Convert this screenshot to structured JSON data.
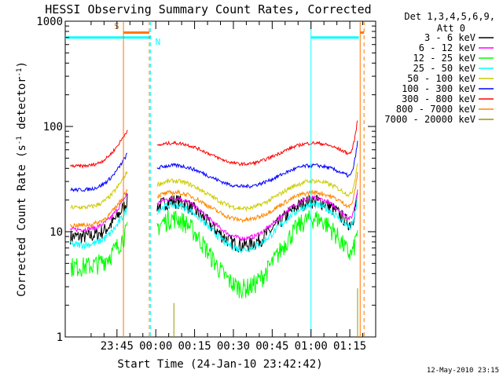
{
  "chart_data": {
    "type": "line",
    "title": "HESSI Observing Summary Count Rates, Corrected",
    "xlabel": "Start Time (24-Jan-10 23:42:42)",
    "ylabel_main": "Corrected Count Rate (s",
    "ylabel_sup1": "-1",
    "ylabel_mid": " detector",
    "ylabel_sup2": "-1",
    "ylabel_end": ")",
    "y_scale": "log",
    "ylim": [
      1,
      1000
    ],
    "xlim_minutes": [
      -20,
      100
    ],
    "x_ticks": [
      {
        "t": 0,
        "label": "23:45"
      },
      {
        "t": 15,
        "label": "00:00"
      },
      {
        "t": 30,
        "label": "00:15"
      },
      {
        "t": 45,
        "label": "00:30"
      },
      {
        "t": 60,
        "label": "00:45"
      },
      {
        "t": 75,
        "label": "01:00"
      },
      {
        "t": 90,
        "label": "01:15"
      }
    ],
    "y_ticks": [
      {
        "v": 1,
        "label": "1"
      },
      {
        "v": 10,
        "label": "10"
      },
      {
        "v": 100,
        "label": "100"
      },
      {
        "v": 1000,
        "label": "1000"
      }
    ],
    "legend_header": [
      "Det 1,3,4,5,6,9,",
      "Att 0"
    ],
    "legend_placement": "right",
    "series": [
      {
        "name": "3 - 6 keV",
        "color": "#000000",
        "base": 17.5,
        "amp": 0.42,
        "pre": 9,
        "noise": 0.16
      },
      {
        "name": "6 - 12 keV",
        "color": "#ff00ff",
        "base": 18.5,
        "amp": 0.38,
        "pre": 10.5,
        "noise": 0.05
      },
      {
        "name": "12 - 25 keV",
        "color": "#00ff00",
        "base": 12,
        "amp": 0.66,
        "pre": 4.7,
        "noise": 0.22
      },
      {
        "name": "25 - 50 keV",
        "color": "#00ffff",
        "base": 16,
        "amp": 0.42,
        "pre": 7.5,
        "noise": 0.08
      },
      {
        "name": "50 - 100 keV",
        "color": "#cccc00",
        "base": 27,
        "amp": 0.26,
        "pre": 17,
        "noise": 0.05
      },
      {
        "name": "100 - 300 keV",
        "color": "#0000ff",
        "base": 38,
        "amp": 0.2,
        "pre": 25,
        "noise": 0.04
      },
      {
        "name": "300 - 800 keV",
        "color": "#ff0000",
        "base": 62,
        "amp": 0.2,
        "pre": 42,
        "noise": 0.035
      },
      {
        "name": "800 - 7000 keV",
        "color": "#ff8800",
        "base": 21,
        "amp": 0.26,
        "pre": 11.5,
        "noise": 0.05
      },
      {
        "name": "7000 - 20000 keV",
        "color": "#999900",
        "base": 0.6,
        "amp": 0,
        "pre": 0.6,
        "noise": 0
      }
    ],
    "flags": [
      {
        "label": "S",
        "color": "#ff7700",
        "start_t": 2.5,
        "end_t": 12.5
      },
      {
        "label": "N",
        "color": "#00ffff",
        "start_t": -20,
        "end_t": 13
      }
    ],
    "timestamp": "12-May-2010 23:15"
  }
}
